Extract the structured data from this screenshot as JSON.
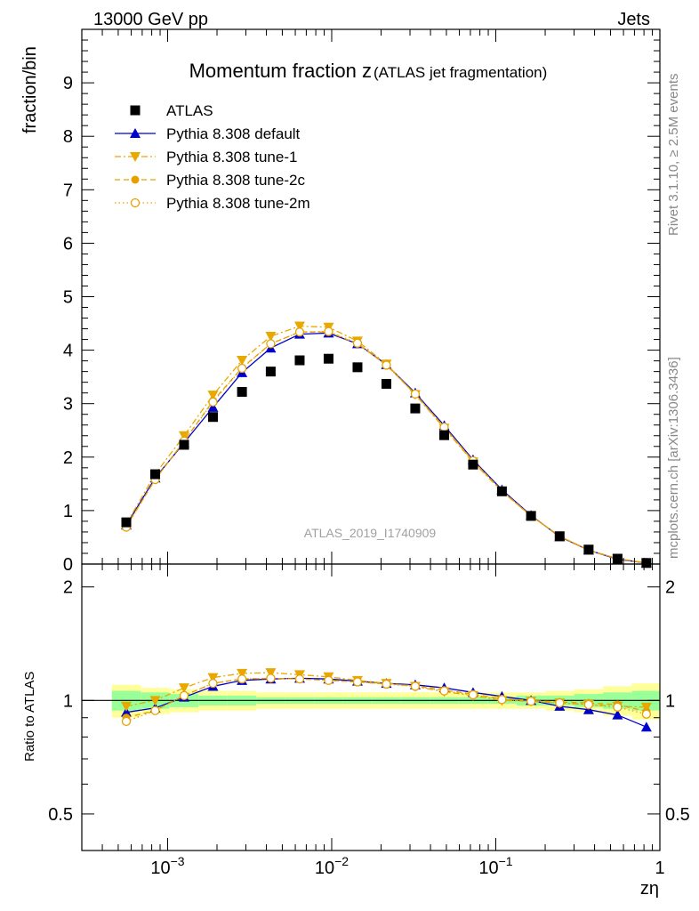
{
  "header": {
    "process": "13000 GeV pp",
    "category": "Jets",
    "side_label_top": "Rivet 3.1.10, ≥ 2.5M events",
    "side_label_bottom": "mcplots.cern.ch [arXiv:1306.3436]",
    "analysis_id": "ATLAS_2019_I1740909"
  },
  "chart_data": [
    {
      "panel": "main",
      "type": "scatter",
      "title_main": "Momentum fraction z",
      "title_sub": "(ATLAS jet fragmentation)",
      "ylabel": "fraction/bin",
      "xlabel": "zη",
      "xscale": "log",
      "xlim": [
        0.0003,
        1
      ],
      "ylim": [
        0,
        10
      ],
      "yticks": [
        0,
        1,
        2,
        3,
        4,
        5,
        6,
        7,
        8,
        9
      ],
      "x": [
        0.00056,
        0.00084,
        0.00126,
        0.00189,
        0.00284,
        0.00425,
        0.00638,
        0.00957,
        0.01436,
        0.02154,
        0.0323,
        0.0485,
        0.0727,
        0.109,
        0.164,
        0.245,
        0.368,
        0.552,
        0.828
      ],
      "series": [
        {
          "name": "ATLAS",
          "color": "#000000",
          "marker": "square",
          "line": "none",
          "values": [
            0.78,
            1.68,
            2.23,
            2.75,
            3.22,
            3.6,
            3.81,
            3.84,
            3.68,
            3.37,
            2.91,
            2.41,
            1.86,
            1.36,
            0.9,
            0.52,
            0.27,
            0.1,
            0.02
          ]
        },
        {
          "name": "Pythia 8.308 default",
          "color": "#0000cc",
          "marker": "triangle-up",
          "line": "solid",
          "values": [
            0.73,
            1.61,
            2.27,
            2.93,
            3.58,
            4.04,
            4.3,
            4.32,
            4.12,
            3.73,
            3.2,
            2.59,
            1.95,
            1.39,
            0.91,
            0.51,
            0.26,
            0.09,
            0.02
          ]
        },
        {
          "name": "Pythia 8.308 tune-1",
          "color": "#e8a800",
          "marker": "triangle-down",
          "line": "dashdot",
          "values": [
            0.75,
            1.68,
            2.4,
            3.16,
            3.81,
            4.26,
            4.45,
            4.43,
            4.17,
            3.74,
            3.17,
            2.54,
            1.91,
            1.36,
            0.9,
            0.52,
            0.26,
            0.1,
            0.02
          ]
        },
        {
          "name": "Pythia 8.308 tune-2c",
          "color": "#e8a000",
          "marker": "circle",
          "line": "dashed",
          "values": [
            0.7,
            1.58,
            2.3,
            3.05,
            3.67,
            4.12,
            4.34,
            4.34,
            4.12,
            3.72,
            3.18,
            2.56,
            1.93,
            1.37,
            0.9,
            0.52,
            0.26,
            0.1,
            0.02
          ]
        },
        {
          "name": "Pythia 8.308 tune-2m",
          "color": "#e8a000",
          "marker": "circle-open",
          "line": "dotted",
          "values": [
            0.69,
            1.58,
            2.3,
            3.03,
            3.66,
            4.12,
            4.34,
            4.35,
            4.13,
            3.72,
            3.18,
            2.56,
            1.93,
            1.37,
            0.9,
            0.52,
            0.26,
            0.1,
            0.02
          ]
        }
      ]
    },
    {
      "panel": "ratio",
      "type": "line",
      "ylabel": "Ratio to ATLAS",
      "xlabel": "zη",
      "xscale": "log",
      "xlim": [
        0.0003,
        1
      ],
      "ylim": [
        0.4,
        2.3
      ],
      "yticks": [
        0.5,
        1,
        2
      ],
      "xticks": [
        {
          "value": 0.001,
          "base": "10",
          "exp": "−3"
        },
        {
          "value": 0.01,
          "base": "10",
          "exp": "−2"
        },
        {
          "value": 0.1,
          "base": "10",
          "exp": "−1"
        },
        {
          "value": 1,
          "label": "1"
        }
      ],
      "x": [
        0.00056,
        0.00084,
        0.00126,
        0.00189,
        0.00284,
        0.00425,
        0.00638,
        0.00957,
        0.01436,
        0.02154,
        0.0323,
        0.0485,
        0.0727,
        0.109,
        0.164,
        0.245,
        0.368,
        0.552,
        0.828
      ],
      "bands": {
        "yellow_halfwidth": [
          0.1,
          0.08,
          0.07,
          0.06,
          0.06,
          0.05,
          0.05,
          0.05,
          0.05,
          0.05,
          0.05,
          0.05,
          0.05,
          0.05,
          0.05,
          0.06,
          0.07,
          0.09,
          0.11
        ],
        "green_halfwidth": [
          0.06,
          0.05,
          0.04,
          0.03,
          0.03,
          0.02,
          0.02,
          0.02,
          0.02,
          0.02,
          0.02,
          0.02,
          0.02,
          0.02,
          0.03,
          0.03,
          0.04,
          0.05,
          0.06
        ],
        "yellow_color": "#ffff99",
        "green_color": "#99ff99"
      },
      "series": [
        {
          "name": "Pythia 8.308 default",
          "color": "#0000cc",
          "marker": "triangle-up",
          "line": "solid",
          "values": [
            0.93,
            0.955,
            1.02,
            1.09,
            1.13,
            1.14,
            1.145,
            1.14,
            1.125,
            1.11,
            1.1,
            1.08,
            1.05,
            1.025,
            1.0,
            0.965,
            0.945,
            0.915,
            0.85
          ]
        },
        {
          "name": "Pythia 8.308 tune-1",
          "color": "#e8a800",
          "marker": "triangle-down",
          "line": "dashdot",
          "values": [
            0.965,
            1.0,
            1.08,
            1.15,
            1.18,
            1.185,
            1.17,
            1.155,
            1.13,
            1.11,
            1.09,
            1.055,
            1.03,
            1.0,
            0.995,
            0.985,
            0.975,
            0.965,
            0.96
          ]
        },
        {
          "name": "Pythia 8.308 tune-2c",
          "color": "#e8a000",
          "marker": "circle",
          "line": "dashed",
          "values": [
            0.9,
            0.94,
            1.03,
            1.11,
            1.14,
            1.145,
            1.14,
            1.13,
            1.12,
            1.105,
            1.095,
            1.065,
            1.04,
            1.01,
            1.0,
            0.99,
            0.985,
            0.975,
            0.935
          ]
        },
        {
          "name": "Pythia 8.308 tune-2m",
          "color": "#e8a000",
          "marker": "circle-open",
          "line": "dotted",
          "values": [
            0.88,
            0.94,
            1.03,
            1.11,
            1.14,
            1.145,
            1.14,
            1.13,
            1.12,
            1.105,
            1.09,
            1.06,
            1.035,
            1.005,
            0.995,
            0.985,
            0.975,
            0.96,
            0.92
          ]
        }
      ]
    }
  ]
}
